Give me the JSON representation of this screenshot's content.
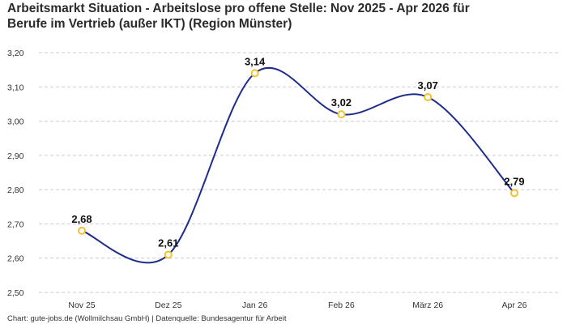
{
  "title_line1": "Arbeitsmarkt Situation - Arbeitslose pro offene Stelle: Nov 2025 - Apr 2026 für",
  "title_line2": "Berufe im Vertrieb (außer IKT) (Region Münster)",
  "footer": "Chart: gute-jobs.de (Wollmilchsau GmbH) | Datenquelle: Bundesagentur für Arbeit",
  "colors": {
    "line": "#1f2d8a",
    "marker": "#f2c12e",
    "grid": "#cccccc"
  },
  "chart_data": {
    "type": "line",
    "categories": [
      "Nov 25",
      "Dez 25",
      "Jan 26",
      "Feb 26",
      "März 26",
      "Apr 26"
    ],
    "values": [
      2.68,
      2.61,
      3.14,
      3.02,
      3.07,
      2.79
    ],
    "value_labels": [
      "2,68",
      "2,61",
      "3,14",
      "3,02",
      "3,07",
      "2,79"
    ],
    "yticks": [
      2.5,
      2.6,
      2.7,
      2.8,
      2.9,
      3.0,
      3.1,
      3.2
    ],
    "ytick_labels": [
      "2,50",
      "2,60",
      "2,70",
      "2,80",
      "2,90",
      "3,00",
      "3,10",
      "3,20"
    ],
    "ylim": [
      2.5,
      3.2
    ],
    "grid": true,
    "smooth": true,
    "xlabel": "",
    "ylabel": ""
  }
}
